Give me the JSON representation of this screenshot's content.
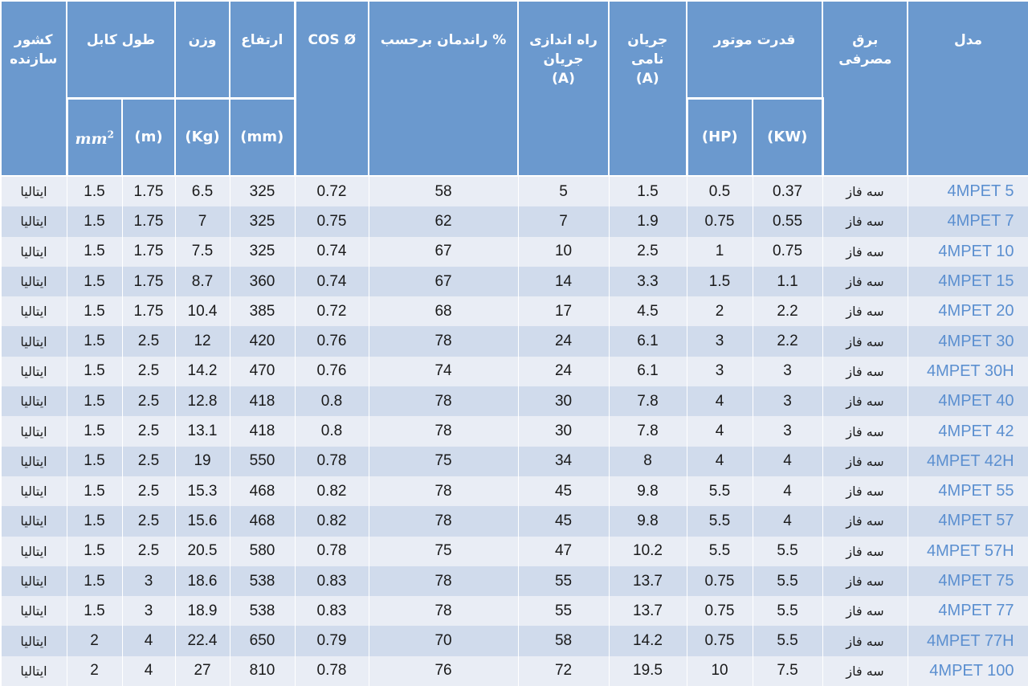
{
  "headers": {
    "country": "کشور\nسازنده",
    "cable_length": "طول کابل",
    "weight": "وزن",
    "height": "ارتفاع",
    "cos": "COS Ø",
    "efficiency": "راندمان برحسب %",
    "starting_current": "راه اندازی\nجریان\n(A)",
    "nominal_current": "جریان\nنامی\n(A)",
    "motor_power": "قدرت موتور",
    "power_supply": "برق\nمصرفی",
    "model": "مدل"
  },
  "subheaders": {
    "cable_section_base": "mm",
    "cable_section_exp": "2",
    "cable_m": "(m)",
    "weight_kg": "(Kg)",
    "height_mm": "(mm)",
    "power_hp": "(HP)",
    "power_kw": "(KW)"
  },
  "rows": [
    {
      "country": "ایتالیا",
      "section": "1.5",
      "cable": "1.75",
      "weight": "6.5",
      "height": "325",
      "cos": "0.72",
      "eff": "58",
      "start": "5",
      "nominal": "1.5",
      "hp": "0.5",
      "kw": "0.37",
      "supply": "سه فاز",
      "model": "4MPET 5"
    },
    {
      "country": "ایتالیا",
      "section": "1.5",
      "cable": "1.75",
      "weight": "7",
      "height": "325",
      "cos": "0.75",
      "eff": "62",
      "start": "7",
      "nominal": "1.9",
      "hp": "0.75",
      "kw": "0.55",
      "supply": "سه فاز",
      "model": "4MPET 7"
    },
    {
      "country": "ایتالیا",
      "section": "1.5",
      "cable": "1.75",
      "weight": "7.5",
      "height": "325",
      "cos": "0.74",
      "eff": "67",
      "start": "10",
      "nominal": "2.5",
      "hp": "1",
      "kw": "0.75",
      "supply": "سه فاز",
      "model": "4MPET 10"
    },
    {
      "country": "ایتالیا",
      "section": "1.5",
      "cable": "1.75",
      "weight": "8.7",
      "height": "360",
      "cos": "0.74",
      "eff": "67",
      "start": "14",
      "nominal": "3.3",
      "hp": "1.5",
      "kw": "1.1",
      "supply": "سه فاز",
      "model": "4MPET 15"
    },
    {
      "country": "ایتالیا",
      "section": "1.5",
      "cable": "1.75",
      "weight": "10.4",
      "height": "385",
      "cos": "0.72",
      "eff": "68",
      "start": "17",
      "nominal": "4.5",
      "hp": "2",
      "kw": "2.2",
      "supply": "سه فاز",
      "model": "4MPET 20"
    },
    {
      "country": "ایتالیا",
      "section": "1.5",
      "cable": "2.5",
      "weight": "12",
      "height": "420",
      "cos": "0.76",
      "eff": "78",
      "start": "24",
      "nominal": "6.1",
      "hp": "3",
      "kw": "2.2",
      "supply": "سه فاز",
      "model": "4MPET 30"
    },
    {
      "country": "ایتالیا",
      "section": "1.5",
      "cable": "2.5",
      "weight": "14.2",
      "height": "470",
      "cos": "0.76",
      "eff": "74",
      "start": "24",
      "nominal": "6.1",
      "hp": "3",
      "kw": "3",
      "supply": "سه فاز",
      "model": "4MPET 30H"
    },
    {
      "country": "ایتالیا",
      "section": "1.5",
      "cable": "2.5",
      "weight": "12.8",
      "height": "418",
      "cos": "0.8",
      "eff": "78",
      "start": "30",
      "nominal": "7.8",
      "hp": "4",
      "kw": "3",
      "supply": "سه فاز",
      "model": "4MPET 40"
    },
    {
      "country": "ایتالیا",
      "section": "1.5",
      "cable": "2.5",
      "weight": "13.1",
      "height": "418",
      "cos": "0.8",
      "eff": "78",
      "start": "30",
      "nominal": "7.8",
      "hp": "4",
      "kw": "3",
      "supply": "سه فاز",
      "model": "4MPET 42"
    },
    {
      "country": "ایتالیا",
      "section": "1.5",
      "cable": "2.5",
      "weight": "19",
      "height": "550",
      "cos": "0.78",
      "eff": "75",
      "start": "34",
      "nominal": "8",
      "hp": "4",
      "kw": "4",
      "supply": "سه فاز",
      "model": "4MPET 42H"
    },
    {
      "country": "ایتالیا",
      "section": "1.5",
      "cable": "2.5",
      "weight": "15.3",
      "height": "468",
      "cos": "0.82",
      "eff": "78",
      "start": "45",
      "nominal": "9.8",
      "hp": "5.5",
      "kw": "4",
      "supply": "سه فاز",
      "model": "4MPET 55"
    },
    {
      "country": "ایتالیا",
      "section": "1.5",
      "cable": "2.5",
      "weight": "15.6",
      "height": "468",
      "cos": "0.82",
      "eff": "78",
      "start": "45",
      "nominal": "9.8",
      "hp": "5.5",
      "kw": "4",
      "supply": "سه فاز",
      "model": "4MPET 57"
    },
    {
      "country": "ایتالیا",
      "section": "1.5",
      "cable": "2.5",
      "weight": "20.5",
      "height": "580",
      "cos": "0.78",
      "eff": "75",
      "start": "47",
      "nominal": "10.2",
      "hp": "5.5",
      "kw": "5.5",
      "supply": "سه فاز",
      "model": "4MPET 57H"
    },
    {
      "country": "ایتالیا",
      "section": "1.5",
      "cable": "3",
      "weight": "18.6",
      "height": "538",
      "cos": "0.83",
      "eff": "78",
      "start": "55",
      "nominal": "13.7",
      "hp": "0.75",
      "kw": "5.5",
      "supply": "سه فاز",
      "model": "4MPET 75"
    },
    {
      "country": "ایتالیا",
      "section": "1.5",
      "cable": "3",
      "weight": "18.9",
      "height": "538",
      "cos": "0.83",
      "eff": "78",
      "start": "55",
      "nominal": "13.7",
      "hp": "0.75",
      "kw": "5.5",
      "supply": "سه فاز",
      "model": "4MPET 77"
    },
    {
      "country": "ایتالیا",
      "section": "2",
      "cable": "4",
      "weight": "22.4",
      "height": "650",
      "cos": "0.79",
      "eff": "70",
      "start": "58",
      "nominal": "14.2",
      "hp": "0.75",
      "kw": "5.5",
      "supply": "سه فاز",
      "model": "4MPET 77H"
    },
    {
      "country": "ایتالیا",
      "section": "2",
      "cable": "4",
      "weight": "27",
      "height": "810",
      "cos": "0.78",
      "eff": "76",
      "start": "72",
      "nominal": "19.5",
      "hp": "10",
      "kw": "7.5",
      "supply": "سه فاز",
      "model": "4MPET 100"
    }
  ]
}
